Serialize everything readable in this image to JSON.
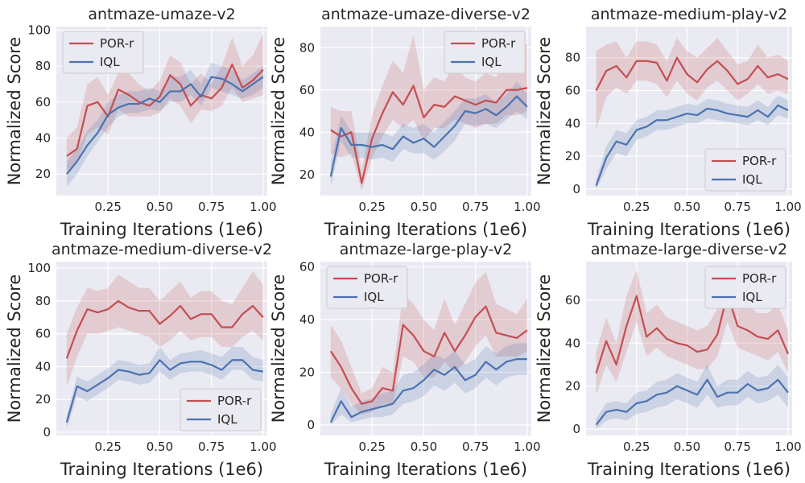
{
  "colors": {
    "por": "#c44e52",
    "iql": "#4c72b0"
  },
  "chart_data": [
    {
      "type": "line",
      "title": "antmaze-umaze-v2",
      "xlabel": "Training Iterations (1e6)",
      "ylabel": "Normalized Score",
      "xlim": [
        0.0,
        1.02
      ],
      "ylim": [
        8,
        102
      ],
      "xticks": [
        0.25,
        0.5,
        0.75,
        1.0
      ],
      "xtick_labels": [
        "0.25",
        "0.50",
        "0.75",
        "1.00"
      ],
      "yticks": [
        20,
        40,
        60,
        80,
        100
      ],
      "ytick_labels": [
        "20",
        "40",
        "60",
        "80",
        "100"
      ],
      "grid": true,
      "legend_position": "top-left",
      "x": [
        0.05,
        0.1,
        0.15,
        0.2,
        0.25,
        0.3,
        0.35,
        0.4,
        0.45,
        0.5,
        0.55,
        0.6,
        0.65,
        0.7,
        0.75,
        0.8,
        0.85,
        0.9,
        0.95,
        1.0
      ],
      "series": [
        {
          "name": "POR-r",
          "values": [
            30,
            34,
            58,
            60,
            52,
            67,
            64,
            60,
            58,
            63,
            75,
            70,
            58,
            64,
            62,
            68,
            81,
            68,
            72,
            78
          ],
          "lower": [
            22,
            26,
            42,
            46,
            42,
            56,
            52,
            52,
            52,
            54,
            62,
            58,
            48,
            56,
            55,
            58,
            68,
            60,
            62,
            64
          ],
          "upper": [
            40,
            46,
            70,
            74,
            64,
            76,
            76,
            70,
            66,
            72,
            86,
            82,
            70,
            76,
            70,
            80,
            96,
            80,
            86,
            98
          ]
        },
        {
          "name": "IQL",
          "values": [
            20,
            27,
            36,
            43,
            53,
            57,
            59,
            59,
            62,
            60,
            66,
            66,
            70,
            63,
            74,
            73,
            70,
            66,
            70,
            74
          ],
          "lower": [
            13,
            20,
            30,
            38,
            46,
            52,
            54,
            54,
            56,
            55,
            60,
            60,
            64,
            58,
            68,
            66,
            64,
            62,
            64,
            68
          ],
          "upper": [
            27,
            34,
            44,
            50,
            60,
            64,
            66,
            66,
            68,
            66,
            74,
            74,
            78,
            70,
            82,
            80,
            78,
            72,
            76,
            80
          ]
        }
      ]
    },
    {
      "type": "line",
      "title": "antmaze-umaze-diverse-v2",
      "xlabel": "Training Iterations (1e6)",
      "ylabel": "Normalized Score",
      "xlim": [
        0.0,
        1.02
      ],
      "ylim": [
        10,
        90
      ],
      "xticks": [
        0.25,
        0.5,
        0.75,
        1.0
      ],
      "xtick_labels": [
        "0.25",
        "0.50",
        "0.75",
        "1.00"
      ],
      "yticks": [
        20,
        40,
        60,
        80
      ],
      "ytick_labels": [
        "20",
        "40",
        "60",
        "80"
      ],
      "grid": true,
      "legend_position": "top-right",
      "x": [
        0.05,
        0.1,
        0.15,
        0.2,
        0.25,
        0.3,
        0.35,
        0.4,
        0.45,
        0.5,
        0.55,
        0.6,
        0.65,
        0.7,
        0.75,
        0.8,
        0.85,
        0.9,
        0.95,
        1.0
      ],
      "series": [
        {
          "name": "POR-r",
          "values": [
            41,
            38,
            40,
            16,
            37,
            49,
            59,
            53,
            62,
            47,
            53,
            52,
            57,
            55,
            53,
            55,
            54,
            60,
            60,
            61
          ],
          "lower": [
            30,
            28,
            30,
            12,
            28,
            38,
            46,
            42,
            46,
            36,
            42,
            42,
            46,
            44,
            42,
            44,
            44,
            48,
            48,
            50
          ],
          "upper": [
            52,
            50,
            50,
            22,
            48,
            62,
            74,
            68,
            86,
            60,
            66,
            64,
            72,
            66,
            64,
            68,
            66,
            76,
            80,
            82
          ]
        },
        {
          "name": "IQL",
          "values": [
            19,
            42,
            34,
            34,
            33,
            34,
            32,
            38,
            35,
            37,
            33,
            38,
            43,
            50,
            49,
            51,
            48,
            52,
            57,
            52
          ],
          "lower": [
            14,
            36,
            28,
            28,
            27,
            28,
            26,
            32,
            30,
            30,
            27,
            31,
            36,
            44,
            43,
            44,
            42,
            46,
            50,
            46
          ],
          "upper": [
            26,
            48,
            40,
            40,
            40,
            40,
            38,
            44,
            42,
            44,
            40,
            45,
            50,
            56,
            56,
            58,
            54,
            58,
            64,
            58
          ]
        }
      ]
    },
    {
      "type": "line",
      "title": "antmaze-medium-play-v2",
      "xlabel": "Training Iterations (1e6)",
      "ylabel": "Normalized Score",
      "xlim": [
        0.0,
        1.02
      ],
      "ylim": [
        -4,
        99
      ],
      "xticks": [
        0.25,
        0.5,
        0.75,
        1.0
      ],
      "xtick_labels": [
        "0.25",
        "0.50",
        "0.75",
        "1.00"
      ],
      "yticks": [
        0,
        20,
        40,
        60,
        80
      ],
      "ytick_labels": [
        "0",
        "20",
        "40",
        "60",
        "80"
      ],
      "grid": true,
      "legend_position": "bottom-right",
      "x": [
        0.05,
        0.1,
        0.15,
        0.2,
        0.25,
        0.3,
        0.35,
        0.4,
        0.45,
        0.5,
        0.55,
        0.6,
        0.65,
        0.7,
        0.75,
        0.8,
        0.85,
        0.9,
        0.95,
        1.0
      ],
      "series": [
        {
          "name": "POR-r",
          "values": [
            60,
            72,
            75,
            68,
            78,
            78,
            77,
            66,
            80,
            70,
            65,
            73,
            78,
            72,
            64,
            67,
            75,
            68,
            70,
            67
          ],
          "lower": [
            36,
            56,
            62,
            58,
            66,
            66,
            64,
            56,
            66,
            58,
            54,
            62,
            66,
            60,
            54,
            58,
            64,
            58,
            60,
            58
          ],
          "upper": [
            84,
            88,
            90,
            80,
            90,
            90,
            88,
            78,
            92,
            84,
            80,
            86,
            92,
            84,
            76,
            78,
            88,
            80,
            82,
            78
          ]
        },
        {
          "name": "IQL",
          "values": [
            2,
            19,
            29,
            27,
            36,
            38,
            42,
            42,
            44,
            46,
            45,
            49,
            48,
            46,
            45,
            44,
            48,
            44,
            51,
            48
          ],
          "lower": [
            0,
            12,
            22,
            20,
            30,
            32,
            36,
            36,
            38,
            40,
            40,
            43,
            42,
            41,
            40,
            39,
            42,
            39,
            45,
            43
          ],
          "upper": [
            6,
            26,
            36,
            34,
            42,
            44,
            48,
            48,
            50,
            52,
            51,
            55,
            54,
            52,
            51,
            50,
            54,
            50,
            57,
            54
          ]
        }
      ]
    },
    {
      "type": "line",
      "title": "antmaze-medium-diverse-v2",
      "xlabel": "Training Iterations (1e6)",
      "ylabel": "Normalized Score",
      "xlim": [
        0.0,
        1.02
      ],
      "ylim": [
        -2,
        104
      ],
      "xticks": [
        0.25,
        0.5,
        0.75,
        1.0
      ],
      "xtick_labels": [
        "0.25",
        "0.50",
        "0.75",
        "1.00"
      ],
      "yticks": [
        0,
        20,
        40,
        60,
        80,
        100
      ],
      "ytick_labels": [
        "0",
        "20",
        "40",
        "60",
        "80",
        "100"
      ],
      "grid": true,
      "legend_position": "bottom-right",
      "x": [
        0.05,
        0.1,
        0.15,
        0.2,
        0.25,
        0.3,
        0.35,
        0.4,
        0.45,
        0.5,
        0.55,
        0.6,
        0.65,
        0.7,
        0.75,
        0.8,
        0.85,
        0.9,
        0.95,
        1.0
      ],
      "series": [
        {
          "name": "POR-r",
          "values": [
            45,
            62,
            75,
            73,
            75,
            80,
            76,
            74,
            74,
            66,
            71,
            77,
            69,
            72,
            72,
            64,
            64,
            72,
            77,
            70
          ],
          "lower": [
            28,
            46,
            60,
            60,
            62,
            64,
            62,
            60,
            58,
            52,
            56,
            62,
            56,
            58,
            58,
            52,
            52,
            58,
            62,
            56
          ],
          "upper": [
            60,
            76,
            88,
            86,
            88,
            96,
            92,
            88,
            88,
            80,
            86,
            92,
            82,
            86,
            86,
            80,
            78,
            88,
            98,
            90
          ]
        },
        {
          "name": "IQL",
          "values": [
            6,
            28,
            25,
            29,
            33,
            38,
            37,
            35,
            36,
            44,
            38,
            42,
            43,
            43,
            41,
            38,
            44,
            44,
            38,
            37
          ],
          "lower": [
            2,
            22,
            19,
            23,
            27,
            32,
            31,
            29,
            30,
            37,
            32,
            36,
            37,
            37,
            35,
            32,
            38,
            38,
            32,
            31
          ],
          "upper": [
            10,
            34,
            31,
            35,
            39,
            44,
            43,
            41,
            42,
            52,
            44,
            48,
            49,
            50,
            48,
            46,
            52,
            52,
            46,
            44
          ]
        }
      ]
    },
    {
      "type": "line",
      "title": "antmaze-large-play-v2",
      "xlabel": "Training Iterations (1e6)",
      "ylabel": "Normalized Score",
      "xlim": [
        0.0,
        1.02
      ],
      "ylim": [
        -4,
        62
      ],
      "xticks": [
        0.25,
        0.5,
        0.75,
        1.0
      ],
      "xtick_labels": [
        "0.25",
        "0.50",
        "0.75",
        "1.00"
      ],
      "yticks": [
        0,
        20,
        40,
        60
      ],
      "ytick_labels": [
        "0",
        "20",
        "40",
        "60"
      ],
      "grid": true,
      "legend_position": "top-left",
      "x": [
        0.05,
        0.1,
        0.15,
        0.2,
        0.25,
        0.3,
        0.35,
        0.4,
        0.45,
        0.5,
        0.55,
        0.6,
        0.65,
        0.7,
        0.75,
        0.8,
        0.85,
        0.9,
        0.95,
        1.0
      ],
      "series": [
        {
          "name": "POR-r",
          "values": [
            28,
            22,
            14,
            8,
            9,
            14,
            13,
            38,
            34,
            28,
            26,
            35,
            28,
            34,
            41,
            45,
            35,
            34,
            33,
            36
          ],
          "lower": [
            18,
            14,
            8,
            4,
            5,
            8,
            8,
            26,
            24,
            18,
            18,
            24,
            20,
            24,
            30,
            34,
            26,
            26,
            26,
            28
          ],
          "upper": [
            38,
            32,
            22,
            12,
            14,
            22,
            20,
            50,
            46,
            40,
            36,
            48,
            38,
            46,
            54,
            58,
            46,
            44,
            42,
            48
          ]
        },
        {
          "name": "IQL",
          "values": [
            1,
            9,
            3,
            5,
            6,
            7,
            8,
            13,
            14,
            17,
            21,
            19,
            22,
            17,
            19,
            24,
            21,
            24,
            25,
            25
          ],
          "lower": [
            0,
            4,
            1,
            2,
            3,
            3,
            4,
            8,
            9,
            11,
            15,
            13,
            16,
            12,
            14,
            18,
            15,
            18,
            19,
            19
          ],
          "upper": [
            4,
            14,
            7,
            9,
            10,
            12,
            13,
            19,
            20,
            23,
            27,
            25,
            28,
            23,
            25,
            30,
            27,
            30,
            31,
            31
          ]
        }
      ]
    },
    {
      "type": "line",
      "title": "antmaze-large-diverse-v2",
      "xlabel": "Training Iterations (1e6)",
      "ylabel": "Normalized Score",
      "xlim": [
        0.0,
        1.02
      ],
      "ylim": [
        -3,
        78
      ],
      "xticks": [
        0.25,
        0.5,
        0.75,
        1.0
      ],
      "xtick_labels": [
        "0.25",
        "0.50",
        "0.75",
        "1.00"
      ],
      "yticks": [
        0,
        20,
        40,
        60
      ],
      "ytick_labels": [
        "0",
        "20",
        "40",
        "60"
      ],
      "grid": true,
      "legend_position": "top-right",
      "x": [
        0.05,
        0.1,
        0.15,
        0.2,
        0.25,
        0.3,
        0.35,
        0.4,
        0.45,
        0.5,
        0.55,
        0.6,
        0.65,
        0.7,
        0.75,
        0.8,
        0.85,
        0.9,
        0.95,
        1.0
      ],
      "series": [
        {
          "name": "POR-r",
          "values": [
            26,
            41,
            30,
            48,
            62,
            43,
            47,
            42,
            40,
            39,
            36,
            37,
            44,
            63,
            48,
            46,
            43,
            42,
            46,
            35
          ],
          "lower": [
            16,
            30,
            22,
            36,
            50,
            34,
            38,
            34,
            32,
            30,
            28,
            28,
            34,
            50,
            38,
            36,
            34,
            32,
            36,
            26
          ],
          "upper": [
            36,
            52,
            40,
            62,
            74,
            54,
            58,
            52,
            50,
            48,
            46,
            48,
            56,
            74,
            60,
            58,
            54,
            54,
            58,
            46
          ]
        },
        {
          "name": "IQL",
          "values": [
            2,
            8,
            9,
            8,
            12,
            13,
            16,
            17,
            20,
            18,
            16,
            23,
            15,
            17,
            17,
            21,
            18,
            19,
            23,
            17
          ],
          "lower": [
            0,
            4,
            5,
            4,
            7,
            8,
            10,
            11,
            14,
            12,
            10,
            16,
            10,
            11,
            11,
            15,
            12,
            13,
            16,
            10
          ],
          "upper": [
            5,
            12,
            13,
            12,
            17,
            18,
            22,
            23,
            26,
            24,
            22,
            30,
            20,
            23,
            23,
            27,
            24,
            25,
            30,
            24
          ]
        }
      ]
    }
  ]
}
